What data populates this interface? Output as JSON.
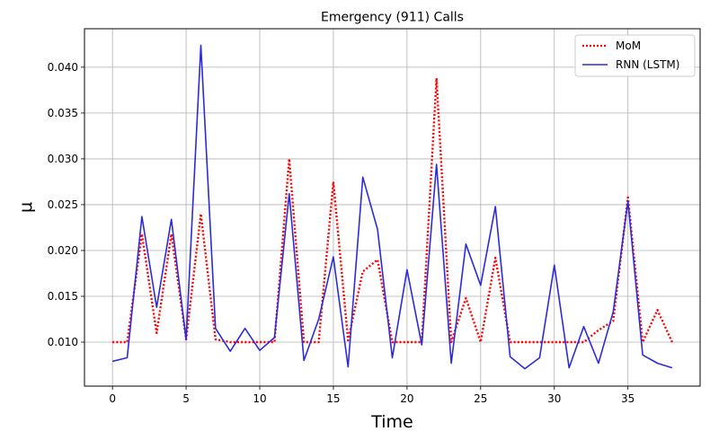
{
  "chart_data": {
    "type": "line",
    "title": "Emergency (911) Calls",
    "xlabel": "Time",
    "ylabel": "μ",
    "xlim": [
      -1.9,
      39.9
    ],
    "ylim": [
      0.0052,
      0.0442
    ],
    "x_ticks": [
      0,
      5,
      10,
      15,
      20,
      25,
      30,
      35
    ],
    "y_ticks": [
      0.01,
      0.015,
      0.02,
      0.025,
      0.03,
      0.035,
      0.04
    ],
    "y_tick_labels": [
      "0.010",
      "0.015",
      "0.020",
      "0.025",
      "0.030",
      "0.035",
      "0.040"
    ],
    "grid": true,
    "legend_position": "top-right",
    "x": [
      0,
      1,
      2,
      3,
      4,
      5,
      6,
      7,
      8,
      9,
      10,
      11,
      12,
      13,
      14,
      15,
      16,
      17,
      18,
      19,
      20,
      21,
      22,
      23,
      24,
      25,
      26,
      27,
      28,
      29,
      30,
      31,
      32,
      33,
      34,
      35,
      36,
      37,
      38
    ],
    "series": [
      {
        "name": "MoM",
        "color": "#ff0000",
        "style": "dotted",
        "values": [
          0.01,
          0.01,
          0.0218,
          0.011,
          0.0218,
          0.0103,
          0.024,
          0.0103,
          0.01,
          0.01,
          0.01,
          0.01,
          0.03,
          0.01,
          0.01,
          0.0275,
          0.0102,
          0.0177,
          0.019,
          0.01,
          0.01,
          0.01,
          0.0388,
          0.01,
          0.0148,
          0.01,
          0.0192,
          0.01,
          0.01,
          0.01,
          0.01,
          0.01,
          0.01,
          0.0113,
          0.0123,
          0.0258,
          0.01,
          0.0135,
          0.01
        ]
      },
      {
        "name": "RNN (LSTM)",
        "color": "#2b2bd9",
        "style": "solid",
        "values": [
          0.0079,
          0.0083,
          0.0237,
          0.0138,
          0.0234,
          0.0103,
          0.0424,
          0.0115,
          0.009,
          0.0115,
          0.0091,
          0.0105,
          0.0262,
          0.008,
          0.0125,
          0.0193,
          0.0073,
          0.028,
          0.0223,
          0.0083,
          0.0179,
          0.0097,
          0.0294,
          0.0077,
          0.0207,
          0.0162,
          0.0248,
          0.0084,
          0.0071,
          0.0083,
          0.0184,
          0.0072,
          0.0117,
          0.0077,
          0.0133,
          0.0254,
          0.0086,
          0.0077,
          0.0072
        ]
      }
    ]
  }
}
